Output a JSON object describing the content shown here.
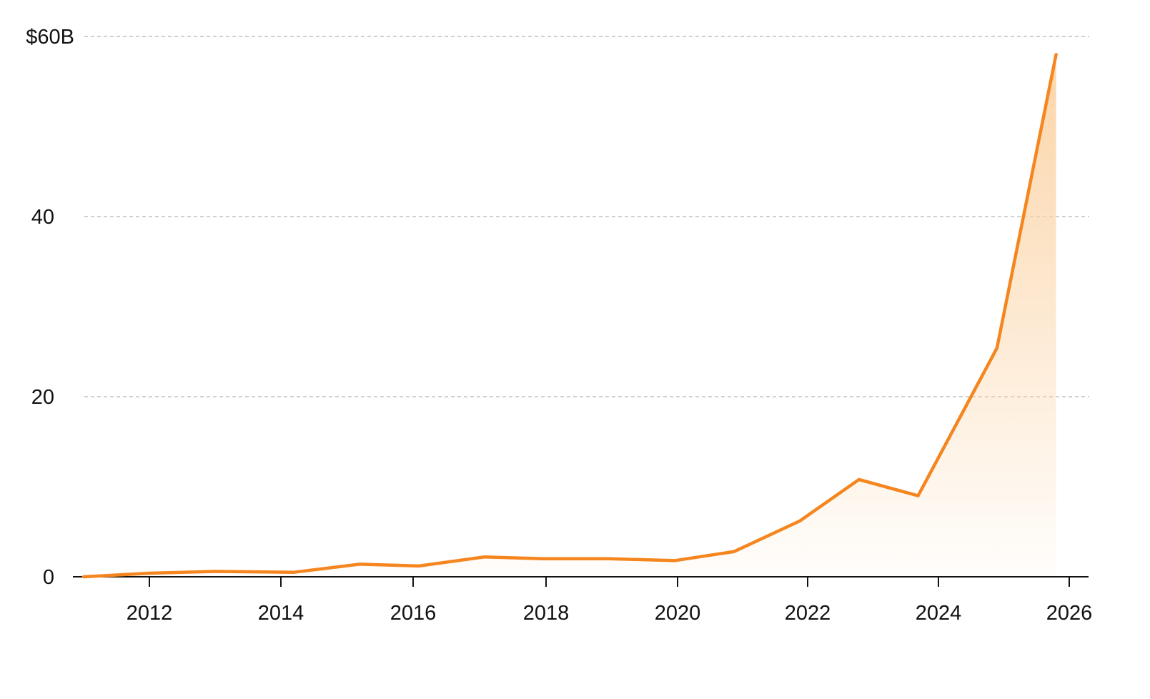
{
  "chart_data": {
    "type": "area",
    "title": "",
    "xlabel": "",
    "ylabel": "",
    "xlim": [
      2011,
      2026.3
    ],
    "ylim": [
      0,
      60
    ],
    "grid": true,
    "x_ticks": [
      2012,
      2014,
      2016,
      2018,
      2020,
      2022,
      2024,
      2026
    ],
    "x_tick_labels": [
      "2012",
      "2014",
      "2016",
      "2018",
      "2020",
      "2022",
      "2024",
      "2026"
    ],
    "y_ticks": [
      0,
      20,
      40,
      60
    ],
    "y_tick_labels": [
      "0",
      "20",
      "40",
      "$60B"
    ],
    "series": [
      {
        "color": "#f5861f",
        "fill_color": "#fbd3a4",
        "points": [
          {
            "x": 2011.0,
            "y": 0.0
          },
          {
            "x": 2012.0,
            "y": 0.4
          },
          {
            "x": 2013.0,
            "y": 0.6
          },
          {
            "x": 2014.2,
            "y": 0.5
          },
          {
            "x": 2015.2,
            "y": 1.4
          },
          {
            "x": 2016.1,
            "y": 1.2
          },
          {
            "x": 2017.1,
            "y": 2.2
          },
          {
            "x": 2018.0,
            "y": 2.0
          },
          {
            "x": 2019.0,
            "y": 2.0
          },
          {
            "x": 2020.0,
            "y": 1.8
          },
          {
            "x": 2020.9,
            "y": 2.8
          },
          {
            "x": 2021.9,
            "y": 6.2
          },
          {
            "x": 2022.8,
            "y": 10.8
          },
          {
            "x": 2023.7,
            "y": 9.0
          },
          {
            "x": 2024.9,
            "y": 25.4
          },
          {
            "x": 2025.8,
            "y": 58.0
          }
        ]
      }
    ]
  }
}
